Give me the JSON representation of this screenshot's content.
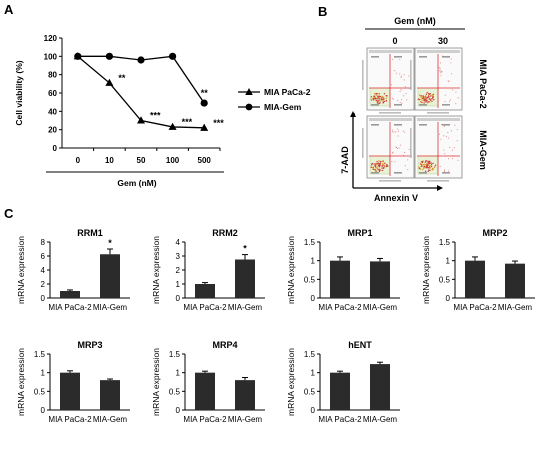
{
  "figure": {
    "panel_labels": {
      "a": "A",
      "b": "B",
      "c": "C"
    },
    "facs": {
      "header": "Gem (nM)",
      "columns": [
        "0",
        "30"
      ],
      "rows": [
        "MIA PaCa-2",
        "MIA-Gem"
      ],
      "ylabel": "7-AAD",
      "xlabel": "Annexin V"
    }
  },
  "chart_data": [
    {
      "id": "A",
      "type": "line",
      "categories": [
        "0",
        "10",
        "50",
        "100",
        "500"
      ],
      "xlabel": "Gem (nM)",
      "ylabel": "Cell viability (%)",
      "ylim": [
        0,
        120
      ],
      "yticks": [
        "0",
        "20",
        "40",
        "60",
        "80",
        "100",
        "120"
      ],
      "legend_position": "right",
      "series": [
        {
          "name": "MIA PaCa-2",
          "marker": "triangle",
          "values": [
            100,
            71,
            30,
            23,
            22
          ],
          "stars": [
            "",
            "**",
            "***",
            "***",
            "***"
          ]
        },
        {
          "name": "MIA-Gem",
          "marker": "circle",
          "values": [
            100,
            100,
            96,
            100,
            49
          ],
          "stars": [
            "",
            "",
            "",
            "",
            "**"
          ]
        }
      ]
    },
    {
      "id": "RRM1",
      "type": "bar",
      "title": "RRM1",
      "ylabel": "mRNA expression",
      "categories": [
        "MIA PaCa-2",
        "MIA-Gem"
      ],
      "values": [
        1.0,
        6.25
      ],
      "errors": [
        0.15,
        0.75
      ],
      "ylim": [
        0,
        8
      ],
      "yticks": [
        "0",
        "2",
        "4",
        "6",
        "8"
      ],
      "stars": [
        "",
        "*"
      ]
    },
    {
      "id": "RRM2",
      "type": "bar",
      "title": "RRM2",
      "ylabel": "mRNA expression",
      "categories": [
        "MIA PaCa-2",
        "MIA-Gem"
      ],
      "values": [
        1.0,
        2.75
      ],
      "errors": [
        0.1,
        0.35
      ],
      "ylim": [
        0,
        4
      ],
      "yticks": [
        "0",
        "1",
        "2",
        "3",
        "4"
      ],
      "stars": [
        "",
        "*"
      ]
    },
    {
      "id": "MRP1",
      "type": "bar",
      "title": "MRP1",
      "ylabel": "mRNA expression",
      "categories": [
        "MIA PaCa-2",
        "MIA-Gem"
      ],
      "values": [
        1.0,
        0.98
      ],
      "errors": [
        0.1,
        0.08
      ],
      "ylim": [
        0,
        1.5
      ],
      "yticks": [
        "0",
        "0.5",
        "1",
        "1.5"
      ],
      "stars": [
        "",
        ""
      ]
    },
    {
      "id": "MRP2",
      "type": "bar",
      "title": "MRP2",
      "ylabel": "mRNA expression",
      "categories": [
        "MIA PaCa-2",
        "MIA-Gem"
      ],
      "values": [
        1.0,
        0.92
      ],
      "errors": [
        0.1,
        0.07
      ],
      "ylim": [
        0,
        1.5
      ],
      "yticks": [
        "0",
        "0.5",
        "1",
        "1.5"
      ],
      "stars": [
        "",
        ""
      ]
    },
    {
      "id": "MRP3",
      "type": "bar",
      "title": "MRP3",
      "ylabel": "mRNA expression",
      "categories": [
        "MIA PaCa-2",
        "MIA-Gem"
      ],
      "values": [
        1.0,
        0.8
      ],
      "errors": [
        0.05,
        0.03
      ],
      "ylim": [
        0,
        1.5
      ],
      "yticks": [
        "0",
        "0.5",
        "1",
        "1.5"
      ],
      "stars": [
        "",
        ""
      ]
    },
    {
      "id": "MRP4",
      "type": "bar",
      "title": "MRP4",
      "ylabel": "mRNA expression",
      "categories": [
        "MIA PaCa-2",
        "MIA-Gem"
      ],
      "values": [
        1.0,
        0.8
      ],
      "errors": [
        0.04,
        0.07
      ],
      "ylim": [
        0,
        1.5
      ],
      "yticks": [
        "0",
        "0.5",
        "1",
        "1.5"
      ],
      "stars": [
        "",
        ""
      ]
    },
    {
      "id": "hENT",
      "type": "bar",
      "title": "hENT",
      "ylabel": "mRNA expression",
      "categories": [
        "MIA PaCa-2",
        "MIA-Gem"
      ],
      "values": [
        1.0,
        1.23
      ],
      "errors": [
        0.04,
        0.05
      ],
      "ylim": [
        0,
        1.5
      ],
      "yticks": [
        "0",
        "0.5",
        "1",
        "1.5"
      ],
      "stars": [
        "",
        ""
      ]
    }
  ]
}
